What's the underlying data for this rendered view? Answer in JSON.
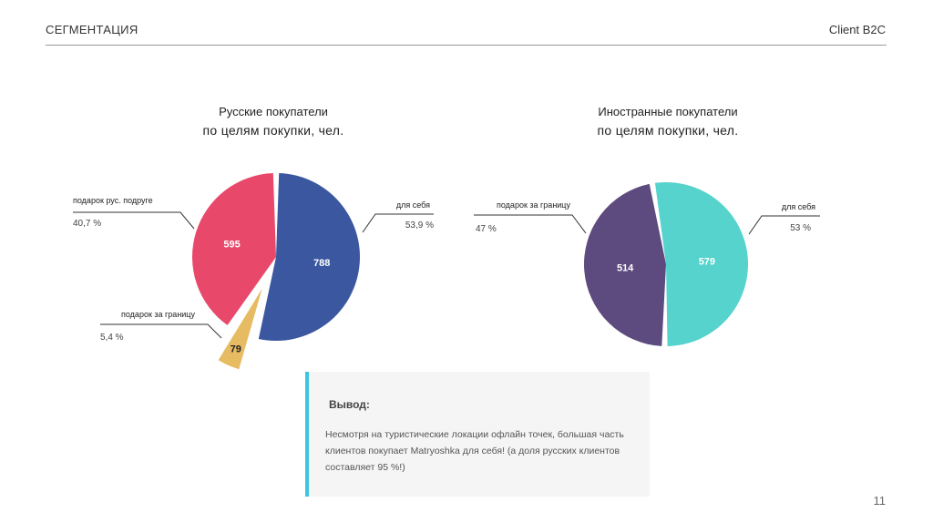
{
  "header": {
    "section": "СЕГМЕНТАЦИЯ",
    "client": "Client B2C"
  },
  "chart_data": [
    {
      "type": "pie",
      "title": "Русские покупатели",
      "subtitle": "по целям покупки, чел.",
      "categories": [
        "подарок рус. подруге",
        "для себя",
        "подарок за границу"
      ],
      "values": [
        595,
        788,
        79
      ],
      "percent_labels": [
        "40,7 %",
        "53,9 %",
        "5,4 %"
      ],
      "colors": [
        "#e8496a",
        "#3a57a0",
        "#e6bb61"
      ],
      "exploded": [
        false,
        false,
        true
      ]
    },
    {
      "type": "pie",
      "title": "Иностранные покупатели",
      "subtitle": "по целям покупки, чел.",
      "categories": [
        "подарок за границу",
        "для себя"
      ],
      "values": [
        514,
        579
      ],
      "percent_labels": [
        "47 %",
        "53 %"
      ],
      "colors": [
        "#5d4a7e",
        "#55d3cc"
      ],
      "exploded": [
        false,
        false
      ]
    }
  ],
  "conclusion": {
    "title": "Вывод:",
    "text": "Несмотря на туристические локации офлайн точек, большая часть клиентов покупает Matryoshka для себя! (а доля русских клиентов составляет 95 %!)"
  },
  "page_number": "11"
}
